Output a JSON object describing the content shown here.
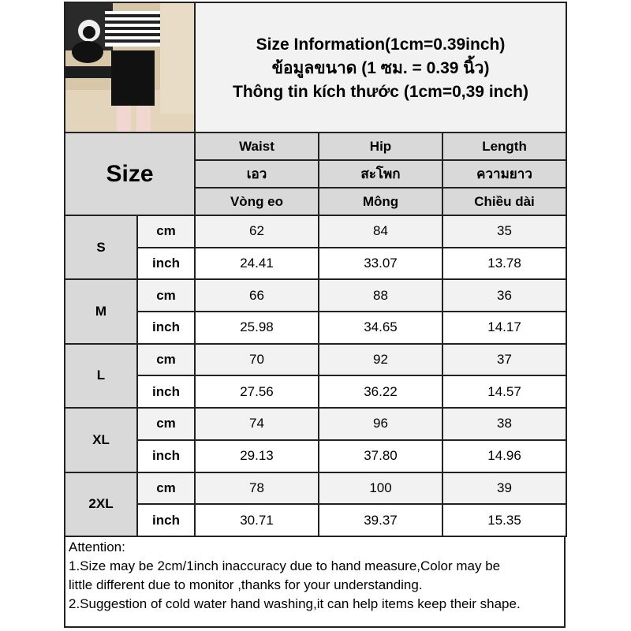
{
  "title": {
    "lines": [
      "Size Information(1cm=0.39inch)",
      "ข้อมูลขนาด (1 ซม. = 0.39 นิ้ว)",
      "Thông tin kích thước (1cm=0,39 inch)"
    ]
  },
  "header": {
    "size_label": "Size",
    "columns": [
      {
        "en": "Waist",
        "th": "เอว",
        "vi": "Vòng eo"
      },
      {
        "en": "Hip",
        "th": "สะโพก",
        "vi": "Mông"
      },
      {
        "en": "Length",
        "th": "ความยาว",
        "vi": "Chiều dài"
      }
    ]
  },
  "units": {
    "cm": "cm",
    "inch": "inch"
  },
  "sizes": [
    {
      "size": "S",
      "cm": [
        "62",
        "84",
        "35"
      ],
      "inch": [
        "24.41",
        "33.07",
        "13.78"
      ]
    },
    {
      "size": "M",
      "cm": [
        "66",
        "88",
        "36"
      ],
      "inch": [
        "25.98",
        "34.65",
        "14.17"
      ]
    },
    {
      "size": "L",
      "cm": [
        "70",
        "92",
        "37"
      ],
      "inch": [
        "27.56",
        "36.22",
        "14.57"
      ]
    },
    {
      "size": "XL",
      "cm": [
        "74",
        "96",
        "38"
      ],
      "inch": [
        "29.13",
        "37.80",
        "14.96"
      ]
    },
    {
      "size": "2XL",
      "cm": [
        "78",
        "100",
        "39"
      ],
      "inch": [
        "30.71",
        "39.37",
        "15.35"
      ]
    }
  ],
  "attention": {
    "heading": "Attention:",
    "lines": [
      "1.Size may be 2cm/1inch inaccuracy due to hand measure,Color may be",
      "little different due to monitor ,thanks for your understanding.",
      "2.Suggestion of cold water hand washing,it can help items keep their shape."
    ]
  },
  "colors": {
    "header_gray": "#d9d9d9",
    "light_gray": "#f2f2f2",
    "border": "#222222"
  }
}
